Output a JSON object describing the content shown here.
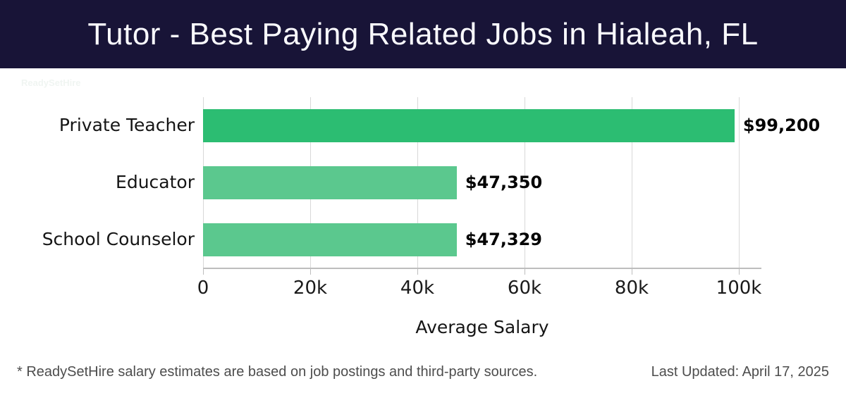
{
  "header": {
    "title": "Tutor - Best Paying Related Jobs in Hialeah, FL",
    "bg_color": "#181437",
    "text_color": "#f9f9fd"
  },
  "watermark": "ReadySetHire",
  "chart_data": {
    "type": "bar",
    "orientation": "horizontal",
    "title": "Tutor - Best Paying Related Jobs in Hialeah, FL",
    "categories": [
      "Private Teacher",
      "Educator",
      "School Counselor"
    ],
    "values": [
      99200,
      47350,
      47329
    ],
    "value_labels": [
      "$99,200",
      "$47,350",
      "$47,329"
    ],
    "bar_colors": [
      "#2cbd72",
      "#5bc88e",
      "#5bc88e"
    ],
    "xlabel": "Average Salary",
    "ylabel": "",
    "xlim": [
      0,
      100000
    ],
    "xticks": [
      0,
      20000,
      40000,
      60000,
      80000,
      100000
    ],
    "xtick_labels": [
      "0",
      "20k",
      "40k",
      "60k",
      "80k",
      "100k"
    ],
    "grid": true,
    "gridline_color": "#d8d8d8",
    "axis_color": "#bdbdbd",
    "legend": "none"
  },
  "footer": {
    "disclaimer": "* ReadySetHire salary estimates are based on job postings and third-party sources.",
    "last_updated": "Last Updated: April 17, 2025"
  }
}
